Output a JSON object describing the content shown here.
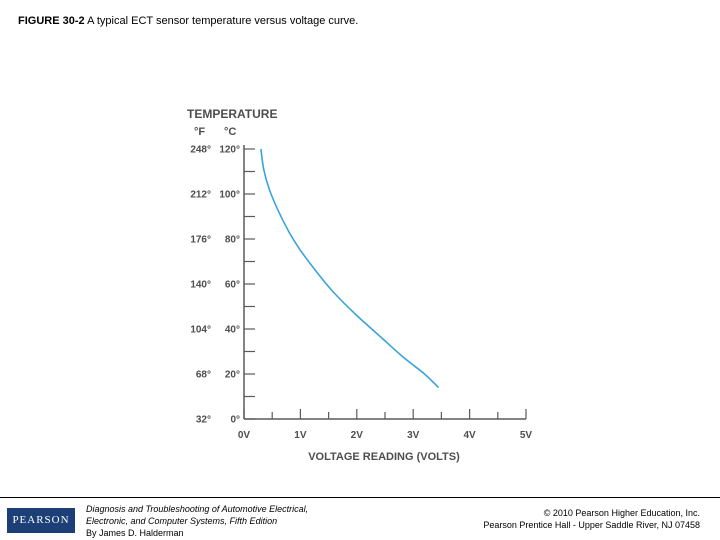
{
  "caption": {
    "lead": "FIGURE 30-2",
    "text": " A typical ECT sensor temperature versus voltage curve."
  },
  "footer": {
    "logo_text": "PEARSON",
    "book_line1": "Diagnosis and Troubleshooting of Automotive Electrical,",
    "book_line2": "Electronic, and Computer Systems, Fifth Edition",
    "book_line3": "By James D. Halderman",
    "copyright_line1": "© 2010 Pearson Higher Education, Inc.",
    "copyright_line2": "Pearson Prentice Hall - Upper Saddle River, NJ 07458"
  },
  "chart_data": {
    "type": "line",
    "title": "",
    "ylabel": "TEMPERATURE",
    "xlabel": "VOLTAGE READING (VOLTS)",
    "y_unit_f": "°F",
    "y_unit_c": "°C",
    "xlim": [
      0,
      5
    ],
    "ylim": [
      0,
      120
    ],
    "x_ticks": [
      "0V",
      "1V",
      "2V",
      "3V",
      "4V",
      "5V"
    ],
    "y_ticks": [
      {
        "c": 120,
        "f_label": "248°",
        "c_label": "120°"
      },
      {
        "c": 100,
        "f_label": "212°",
        "c_label": "100°"
      },
      {
        "c": 80,
        "f_label": "176°",
        "c_label": "80°"
      },
      {
        "c": 60,
        "f_label": "140°",
        "c_label": "60°"
      },
      {
        "c": 40,
        "f_label": "104°",
        "c_label": "40°"
      },
      {
        "c": 20,
        "f_label": "68°",
        "c_label": "20°"
      },
      {
        "c": 0,
        "f_label": "32°",
        "c_label": "0°"
      }
    ],
    "line_color": "#3aa3dc",
    "series": [
      {
        "x": [
          0.3,
          0.35,
          0.45,
          0.6,
          0.8,
          1.0,
          1.3,
          1.6,
          2.0,
          2.4,
          2.8,
          3.2,
          3.45
        ],
        "y": [
          120,
          111,
          102,
          93,
          83,
          75,
          65,
          56,
          46,
          37,
          28,
          20,
          14
        ]
      }
    ]
  }
}
